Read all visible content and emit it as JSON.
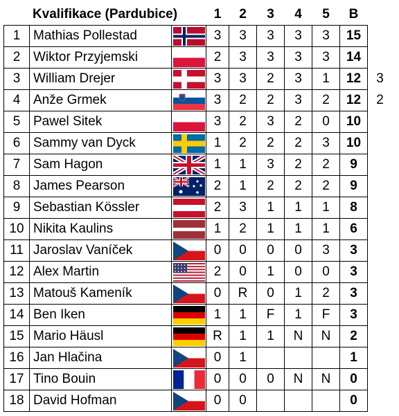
{
  "header": {
    "title": "Kvalifikace (Pardubice)",
    "heats": [
      1,
      2,
      3,
      4,
      5
    ],
    "total": "B"
  },
  "rows": [
    {
      "rank": 1,
      "name": "Mathias Pollestad",
      "heats": [
        3,
        3,
        3,
        3,
        3
      ],
      "total": 15
    },
    {
      "rank": 2,
      "name": "Wiktor Przyjemski",
      "heats": [
        2,
        3,
        3,
        3,
        3
      ],
      "total": 14
    },
    {
      "rank": 3,
      "name": "William Drejer",
      "heats": [
        3,
        3,
        2,
        3,
        1
      ],
      "total": 12,
      "tiebreak": 3
    },
    {
      "rank": 4,
      "name": "Anže Grmek",
      "heats": [
        3,
        2,
        2,
        3,
        2
      ],
      "total": 12,
      "tiebreak": 2
    },
    {
      "rank": 5,
      "name": "Pawel Sitek",
      "heats": [
        3,
        2,
        3,
        2,
        0
      ],
      "total": 10
    },
    {
      "rank": 6,
      "name": "Sammy van Dyck",
      "heats": [
        1,
        2,
        2,
        2,
        3
      ],
      "total": 10
    },
    {
      "rank": 7,
      "name": "Sam Hagon",
      "heats": [
        1,
        1,
        3,
        2,
        2
      ],
      "total": 9
    },
    {
      "rank": 8,
      "name": "James Pearson",
      "heats": [
        2,
        1,
        2,
        2,
        2
      ],
      "total": 9
    },
    {
      "rank": 9,
      "name": "Sebastian Kössler",
      "heats": [
        2,
        3,
        1,
        1,
        1
      ],
      "total": 8
    },
    {
      "rank": 10,
      "name": "Nikita Kaulins",
      "heats": [
        1,
        2,
        1,
        1,
        1
      ],
      "total": 6
    },
    {
      "rank": 11,
      "name": "Jaroslav Vaníček",
      "heats": [
        0,
        0,
        0,
        0,
        3
      ],
      "total": 3
    },
    {
      "rank": 12,
      "name": "Alex Martin",
      "heats": [
        2,
        0,
        1,
        0,
        0
      ],
      "total": 3
    },
    {
      "rank": 13,
      "name": "Matouš Kameník",
      "heats": [
        0,
        "R",
        0,
        1,
        2
      ],
      "total": 3
    },
    {
      "rank": 14,
      "name": "Ben Iken",
      "heats": [
        1,
        1,
        "F",
        1,
        "F"
      ],
      "total": 3
    },
    {
      "rank": 15,
      "name": "Mario Häusl",
      "heats": [
        "R",
        1,
        1,
        "N",
        "N"
      ],
      "total": 2
    },
    {
      "rank": 16,
      "name": "Jan Hlačina",
      "heats": [
        0,
        1,
        null,
        null,
        null
      ],
      "total": 1
    },
    {
      "rank": 17,
      "name": "Tino Bouin",
      "heats": [
        0,
        0,
        0,
        "N",
        "N"
      ],
      "total": 0
    },
    {
      "rank": 18,
      "name": "David Hofman",
      "heats": [
        0,
        0,
        null,
        null,
        null
      ],
      "total": 0
    }
  ]
}
